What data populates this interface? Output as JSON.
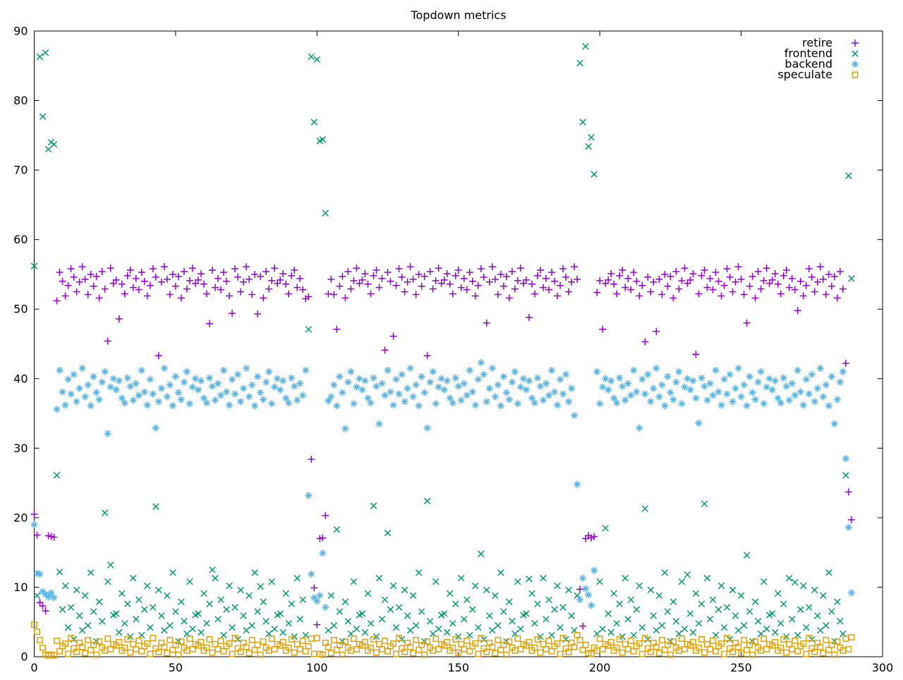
{
  "title": "Topdown metrics",
  "chart_data": {
    "type": "scatter",
    "title": "Topdown metrics",
    "xlabel": "",
    "ylabel": "",
    "xlim": [
      0,
      300
    ],
    "ylim": [
      0,
      90
    ],
    "x_ticks": [
      0,
      50,
      100,
      150,
      200,
      250,
      300
    ],
    "y_ticks": [
      0,
      10,
      20,
      30,
      40,
      50,
      60,
      70,
      80,
      90
    ],
    "grid": false,
    "legend_position": "top-right-inside",
    "x_encoding": "index (iteration 0-289), one sample per iteration",
    "series": [
      {
        "name": "retire",
        "marker": "plus",
        "color": "#9400d3",
        "y": [
          20.5,
          17.5,
          7.8,
          7.3,
          6.6,
          17.4,
          17.3,
          17.2,
          51.2,
          55.3,
          54.0,
          51.9,
          53.4,
          55.8,
          54.6,
          52.5,
          53.9,
          56.1,
          54.3,
          52.1,
          55.0,
          53.3,
          54.7,
          51.6,
          55.4,
          52.9,
          45.4,
          55.9,
          53.7,
          54.2,
          48.6,
          53.6,
          52.2,
          54.8,
          55.6,
          53.1,
          54.4,
          52.8,
          55.3,
          54.0,
          51.9,
          53.4,
          55.8,
          54.6,
          43.3,
          53.9,
          56.1,
          54.3,
          52.1,
          55.0,
          53.3,
          54.7,
          51.6,
          55.4,
          52.9,
          54.1,
          55.9,
          53.7,
          54.2,
          55.1,
          53.6,
          52.2,
          47.9,
          55.6,
          53.1,
          54.4,
          52.8,
          55.3,
          54.0,
          51.9,
          49.4,
          55.8,
          54.6,
          52.5,
          53.9,
          56.1,
          54.3,
          52.1,
          55.0,
          49.3,
          54.7,
          51.6,
          55.4,
          52.9,
          54.1,
          55.9,
          53.7,
          54.2,
          55.1,
          53.6,
          52.2,
          54.8,
          55.6,
          53.1,
          54.4,
          52.8,
          51.5,
          51.8,
          28.4,
          9.9,
          4.6,
          17.0,
          17.1,
          20.3,
          52.2,
          54.3,
          52.1,
          47.1,
          53.3,
          54.7,
          51.6,
          55.4,
          52.9,
          54.1,
          55.9,
          53.7,
          54.2,
          55.1,
          53.6,
          52.2,
          54.8,
          55.6,
          53.1,
          54.4,
          44.1,
          55.3,
          54.0,
          46.1,
          53.4,
          55.8,
          54.6,
          52.5,
          53.9,
          56.1,
          54.3,
          52.1,
          55.0,
          53.3,
          54.7,
          43.3,
          55.4,
          52.9,
          54.1,
          55.9,
          53.7,
          54.2,
          55.1,
          53.6,
          52.2,
          54.8,
          55.6,
          53.1,
          54.4,
          52.8,
          55.3,
          54.0,
          51.9,
          53.4,
          55.8,
          54.6,
          48.0,
          53.9,
          56.1,
          54.3,
          52.1,
          55.0,
          53.3,
          54.7,
          51.6,
          55.4,
          52.9,
          54.1,
          55.9,
          53.7,
          54.2,
          48.8,
          53.6,
          52.2,
          54.8,
          55.6,
          53.1,
          54.4,
          52.8,
          55.3,
          54.0,
          51.9,
          53.4,
          55.8,
          54.6,
          52.5,
          53.9,
          56.1,
          54.3,
          9.7,
          4.4,
          17.0,
          17.4,
          17.1,
          17.3,
          52.4,
          54.1,
          47.1,
          53.7,
          54.2,
          55.1,
          53.6,
          52.2,
          54.8,
          55.6,
          53.1,
          54.4,
          52.8,
          55.3,
          54.0,
          51.9,
          53.4,
          45.3,
          54.6,
          52.5,
          53.9,
          46.8,
          54.3,
          52.1,
          55.0,
          53.3,
          54.7,
          51.6,
          55.4,
          52.9,
          54.1,
          55.9,
          53.7,
          54.2,
          55.1,
          43.5,
          52.2,
          54.8,
          55.6,
          53.1,
          54.4,
          52.8,
          55.3,
          54.0,
          51.9,
          53.4,
          55.8,
          54.6,
          52.5,
          53.9,
          56.1,
          54.3,
          52.1,
          48.0,
          53.3,
          54.7,
          51.6,
          55.4,
          52.9,
          54.1,
          55.9,
          53.7,
          54.2,
          55.1,
          53.6,
          52.2,
          54.8,
          55.6,
          53.1,
          54.4,
          52.8,
          49.8,
          54.0,
          51.9,
          53.4,
          55.8,
          54.6,
          52.5,
          53.9,
          56.1,
          54.3,
          52.1,
          55.0,
          53.3,
          54.7,
          51.6,
          55.4,
          52.9,
          42.2,
          23.7,
          19.7
        ]
      },
      {
        "name": "frontend",
        "marker": "cross",
        "color": "#009e73",
        "y": [
          56.2,
          8.8,
          86.3,
          77.7,
          86.9,
          73.0,
          74.0,
          73.7,
          26.1,
          12.2,
          6.8,
          10.2,
          4.2,
          7.1,
          2.5,
          9.6,
          5.9,
          3.8,
          8.8,
          4.5,
          12.1,
          6.5,
          2.2,
          7.9,
          5.1,
          20.7,
          10.8,
          13.2,
          6.0,
          6.2,
          3.5,
          9.1,
          4.8,
          7.6,
          2.9,
          11.3,
          5.4,
          8.2,
          3.1,
          6.8,
          10.2,
          4.2,
          7.1,
          21.6,
          9.6,
          5.9,
          3.8,
          8.8,
          4.5,
          12.1,
          6.5,
          2.2,
          7.9,
          5.1,
          3.3,
          10.8,
          4.0,
          6.0,
          6.2,
          3.5,
          9.1,
          4.8,
          7.6,
          12.5,
          11.3,
          5.4,
          8.2,
          3.1,
          6.8,
          10.2,
          4.2,
          7.1,
          2.5,
          9.6,
          5.9,
          3.8,
          8.8,
          4.5,
          12.1,
          6.5,
          10.1,
          7.9,
          5.1,
          3.3,
          10.8,
          4.0,
          6.0,
          6.2,
          3.5,
          9.1,
          4.8,
          7.6,
          2.9,
          11.3,
          5.4,
          8.2,
          3.1,
          47.1,
          86.3,
          76.9,
          85.9,
          74.2,
          74.4,
          63.8,
          3.8,
          8.8,
          4.5,
          18.3,
          6.5,
          2.2,
          7.9,
          5.1,
          3.3,
          10.8,
          4.0,
          6.0,
          6.2,
          3.5,
          9.1,
          4.8,
          21.7,
          2.9,
          11.3,
          5.4,
          8.2,
          17.8,
          6.8,
          10.2,
          4.2,
          7.1,
          2.5,
          9.6,
          5.9,
          3.8,
          8.8,
          4.5,
          12.1,
          6.5,
          2.2,
          22.4,
          5.1,
          3.3,
          10.8,
          4.0,
          6.0,
          6.2,
          3.5,
          9.1,
          4.8,
          7.6,
          2.9,
          11.3,
          5.4,
          8.2,
          3.1,
          6.8,
          10.2,
          4.2,
          14.8,
          2.5,
          9.6,
          5.9,
          3.8,
          8.8,
          4.5,
          12.1,
          6.5,
          2.2,
          7.9,
          5.1,
          3.3,
          10.8,
          4.0,
          6.0,
          6.2,
          11.2,
          9.1,
          4.8,
          7.6,
          2.9,
          11.3,
          5.4,
          8.2,
          3.1,
          6.8,
          10.2,
          4.2,
          7.1,
          2.5,
          9.6,
          5.9,
          3.8,
          8.8,
          85.4,
          76.9,
          87.8,
          73.4,
          74.7,
          69.4,
          3.3,
          10.8,
          4.0,
          18.5,
          6.2,
          3.5,
          9.1,
          4.8,
          7.6,
          2.9,
          11.3,
          5.4,
          8.2,
          3.1,
          6.8,
          10.2,
          4.2,
          21.3,
          2.5,
          9.6,
          5.9,
          3.8,
          8.8,
          4.5,
          12.1,
          6.5,
          2.2,
          7.9,
          5.1,
          3.3,
          10.8,
          4.0,
          11.8,
          6.2,
          3.5,
          9.1,
          4.8,
          7.6,
          22.0,
          11.3,
          5.4,
          8.2,
          3.1,
          6.8,
          10.2,
          4.2,
          7.1,
          2.5,
          9.6,
          5.9,
          3.8,
          8.8,
          4.5,
          14.6,
          6.5,
          2.2,
          7.9,
          5.1,
          3.3,
          10.8,
          4.0,
          6.0,
          6.2,
          3.5,
          9.1,
          4.8,
          7.6,
          2.9,
          11.3,
          5.4,
          10.7,
          3.1,
          6.8,
          10.2,
          4.2,
          7.1,
          2.5,
          9.6,
          5.9,
          3.8,
          8.8,
          4.5,
          12.1,
          6.5,
          2.2,
          7.9,
          5.1,
          3.3,
          26.1,
          69.2,
          54.4
        ]
      },
      {
        "name": "backend",
        "marker": "star",
        "color": "#56b4e9",
        "y": [
          19.0,
          12.0,
          11.9,
          9.4,
          9.0,
          8.6,
          9.2,
          8.5,
          35.6,
          41.2,
          38.1,
          36.2,
          39.9,
          37.8,
          40.6,
          36.7,
          38.6,
          41.5,
          37.4,
          39.1,
          36.1,
          40.3,
          38.0,
          37.0,
          39.5,
          41.0,
          32.1,
          38.8,
          40.0,
          38.4,
          39.7,
          37.2,
          36.5,
          40.1,
          38.9,
          36.9,
          39.3,
          37.6,
          41.2,
          38.1,
          36.2,
          39.9,
          37.8,
          32.9,
          36.7,
          38.6,
          41.5,
          37.4,
          39.1,
          36.1,
          40.3,
          38.0,
          37.0,
          39.5,
          41.0,
          36.4,
          38.8,
          40.0,
          38.4,
          39.7,
          37.2,
          36.5,
          40.1,
          38.9,
          36.9,
          39.3,
          37.6,
          41.2,
          38.1,
          36.2,
          39.9,
          37.8,
          40.6,
          36.7,
          38.6,
          41.5,
          37.4,
          39.1,
          36.1,
          40.3,
          38.0,
          37.0,
          39.5,
          41.0,
          36.4,
          38.8,
          40.0,
          38.4,
          39.7,
          37.2,
          36.5,
          40.1,
          38.9,
          36.9,
          39.3,
          37.6,
          41.2,
          23.2,
          11.9,
          8.5,
          8.0,
          8.8,
          14.9,
          7.1,
          36.8,
          37.4,
          39.1,
          36.1,
          40.3,
          38.0,
          32.8,
          39.5,
          41.0,
          36.4,
          38.8,
          40.0,
          38.4,
          39.7,
          37.2,
          36.5,
          40.1,
          38.9,
          33.5,
          39.3,
          37.6,
          41.2,
          38.1,
          36.2,
          39.9,
          37.8,
          40.6,
          36.7,
          38.6,
          41.5,
          37.4,
          39.1,
          36.1,
          40.3,
          38.0,
          32.9,
          39.5,
          41.0,
          36.4,
          38.8,
          40.0,
          38.4,
          39.7,
          37.2,
          36.5,
          40.1,
          38.9,
          36.9,
          39.3,
          37.6,
          41.2,
          38.1,
          36.2,
          39.9,
          42.3,
          40.6,
          36.7,
          38.6,
          41.5,
          37.4,
          39.1,
          36.1,
          40.3,
          38.0,
          37.0,
          39.5,
          41.0,
          36.4,
          38.8,
          40.0,
          38.4,
          39.7,
          37.2,
          36.5,
          40.1,
          38.9,
          36.9,
          39.3,
          37.6,
          41.2,
          38.1,
          36.2,
          39.9,
          37.8,
          40.6,
          36.7,
          38.6,
          34.7,
          24.8,
          8.2,
          11.3,
          9.8,
          8.9,
          7.4,
          12.4,
          41.0,
          36.4,
          38.8,
          40.0,
          38.4,
          39.7,
          37.2,
          36.5,
          40.1,
          38.9,
          36.9,
          39.3,
          37.6,
          41.2,
          38.1,
          32.9,
          39.9,
          37.8,
          40.6,
          36.7,
          38.6,
          41.5,
          37.4,
          39.1,
          36.1,
          40.3,
          38.0,
          37.0,
          39.5,
          41.0,
          36.4,
          38.8,
          40.0,
          38.4,
          39.7,
          37.2,
          33.6,
          40.1,
          38.9,
          36.9,
          39.3,
          37.6,
          41.2,
          38.1,
          36.2,
          39.9,
          37.8,
          40.6,
          36.7,
          38.6,
          41.5,
          37.4,
          39.1,
          36.1,
          40.3,
          38.0,
          37.0,
          39.5,
          41.0,
          36.4,
          38.8,
          40.0,
          38.4,
          39.7,
          37.2,
          36.5,
          40.1,
          38.9,
          36.9,
          39.3,
          37.6,
          41.2,
          38.1,
          36.2,
          39.9,
          37.8,
          40.6,
          36.7,
          38.6,
          41.5,
          37.4,
          39.1,
          36.1,
          40.3,
          33.5,
          37.0,
          39.5,
          41.0,
          28.5,
          18.6,
          9.2
        ]
      },
      {
        "name": "speculate",
        "marker": "square",
        "color": "#e69f00",
        "y": [
          4.6,
          3.6,
          2.4,
          1.3,
          0.3,
          0.2,
          0.3,
          0.2,
          2.3,
          0.8,
          1.5,
          1.9,
          0.4,
          2.7,
          1.2,
          0.7,
          2.0,
          1.4,
          0.5,
          2.4,
          1.0,
          1.7,
          0.3,
          2.2,
          1.3,
          0.9,
          2.6,
          1.1,
          1.8,
          1.6,
          2.1,
          0.9,
          1.3,
          2.5,
          0.6,
          1.8,
          1.1,
          2.3,
          0.8,
          1.5,
          1.9,
          0.4,
          2.7,
          1.2,
          0.7,
          2.0,
          1.4,
          0.5,
          2.4,
          1.0,
          1.7,
          0.3,
          2.2,
          1.3,
          0.9,
          2.6,
          1.1,
          1.8,
          1.6,
          2.1,
          0.9,
          1.3,
          2.5,
          0.6,
          1.8,
          1.1,
          2.3,
          0.8,
          1.5,
          1.9,
          0.4,
          2.7,
          1.2,
          0.7,
          2.0,
          1.4,
          0.5,
          2.4,
          1.0,
          1.7,
          0.3,
          2.2,
          1.3,
          0.9,
          2.6,
          1.1,
          1.8,
          1.6,
          2.1,
          0.9,
          1.3,
          2.5,
          0.6,
          1.8,
          1.1,
          2.3,
          0.8,
          1.5,
          2.6,
          0.4,
          2.7,
          0.4,
          0.3,
          2.0,
          1.4,
          0.5,
          2.4,
          1.0,
          1.7,
          0.3,
          2.2,
          1.3,
          0.9,
          2.6,
          1.1,
          1.8,
          1.6,
          2.1,
          0.9,
          1.3,
          2.5,
          0.6,
          1.8,
          1.1,
          2.3,
          0.8,
          1.5,
          1.9,
          0.4,
          2.7,
          1.2,
          0.7,
          2.0,
          1.4,
          0.5,
          2.4,
          1.0,
          1.7,
          0.3,
          2.2,
          1.3,
          0.9,
          2.6,
          1.1,
          1.8,
          1.6,
          2.1,
          0.9,
          1.3,
          2.5,
          0.6,
          1.8,
          1.1,
          2.3,
          0.8,
          1.5,
          1.9,
          0.4,
          2.7,
          1.2,
          0.7,
          2.0,
          1.4,
          0.5,
          2.4,
          1.0,
          1.7,
          0.3,
          2.2,
          1.3,
          0.9,
          2.6,
          1.1,
          1.8,
          1.6,
          2.1,
          0.9,
          1.3,
          2.5,
          0.6,
          1.8,
          1.1,
          2.3,
          0.8,
          1.5,
          1.9,
          0.4,
          2.7,
          1.2,
          0.7,
          2.0,
          1.4,
          3.1,
          2.4,
          1.0,
          1.7,
          0.5,
          0.4,
          1.3,
          0.9,
          2.6,
          1.1,
          1.8,
          1.6,
          2.1,
          0.9,
          1.3,
          2.5,
          0.6,
          1.8,
          1.1,
          2.3,
          0.8,
          1.5,
          1.9,
          0.4,
          2.7,
          1.2,
          0.7,
          2.0,
          1.4,
          0.5,
          2.4,
          1.0,
          1.7,
          0.3,
          2.2,
          1.3,
          0.9,
          2.6,
          1.1,
          1.8,
          1.6,
          2.1,
          0.9,
          1.3,
          2.5,
          0.6,
          1.8,
          1.1,
          2.3,
          0.8,
          1.5,
          1.9,
          0.4,
          2.7,
          1.2,
          0.7,
          2.0,
          1.4,
          0.5,
          2.4,
          1.0,
          1.7,
          0.3,
          2.2,
          1.3,
          0.9,
          2.6,
          1.1,
          1.8,
          1.6,
          2.1,
          0.9,
          1.3,
          2.5,
          0.6,
          1.8,
          1.1,
          2.3,
          0.8,
          1.5,
          1.9,
          0.4,
          2.7,
          1.2,
          0.7,
          2.0,
          1.4,
          0.5,
          2.4,
          1.0,
          1.7,
          0.3,
          2.2,
          1.3,
          0.9,
          2.6,
          1.1,
          2.8
        ]
      }
    ]
  }
}
